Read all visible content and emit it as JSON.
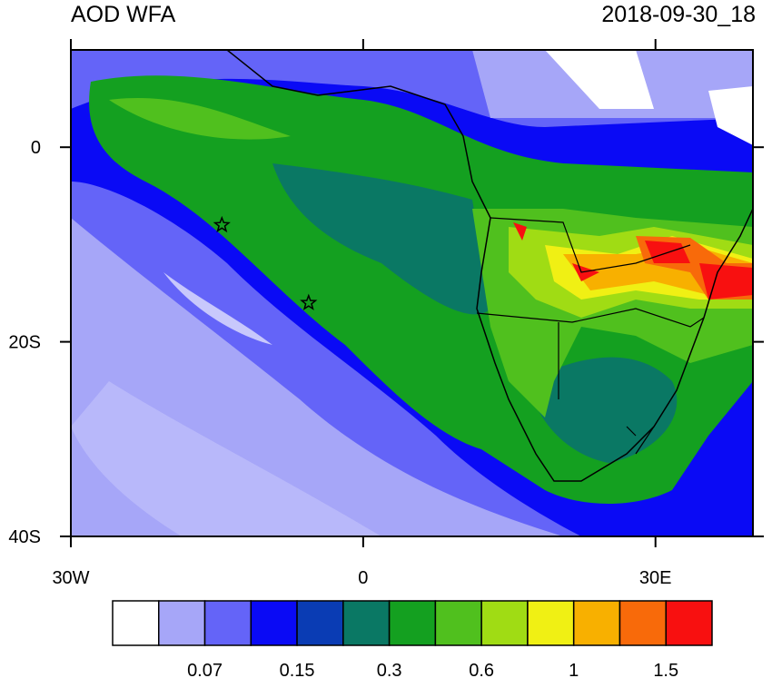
{
  "title": "AOD WFA",
  "timestamp": "2018-09-30_18",
  "map": {
    "lon_range": [
      -30,
      40
    ],
    "lat_range": [
      -40,
      10
    ],
    "lon_ticks": [
      {
        "value": -30,
        "label": "30W"
      },
      0,
      {
        "value": 30,
        "label": "30E"
      }
    ],
    "lat_ticks": [
      0,
      {
        "value": -20,
        "label": "20S"
      },
      {
        "value": -40,
        "label": "40S"
      }
    ],
    "markers": [
      {
        "lon": -14.5,
        "lat": -8
      },
      {
        "lon": -5.6,
        "lat": -16
      }
    ]
  },
  "colorbar": {
    "colors": [
      "#ffffff",
      "#a6a6f8",
      "#6464f8",
      "#0a0af5",
      "#0a3cb4",
      "#0a7864",
      "#14a020",
      "#50c01e",
      "#a0dc14",
      "#f0f014",
      "#f8b000",
      "#f86a0a",
      "#f81010"
    ],
    "labels": [
      0.07,
      0.15,
      0.3,
      0.6,
      1,
      1.5
    ]
  }
}
